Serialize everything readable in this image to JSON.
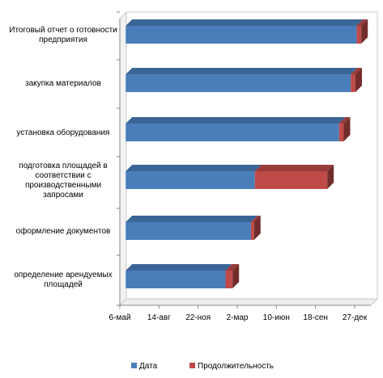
{
  "chart_data": {
    "type": "bar",
    "orientation": "horizontal",
    "stacked": true,
    "style": "3d",
    "categories": [
      "Итоговый отчет о готовности предприятия",
      "закупка материалов",
      "установка оборудования",
      "подготовка площадей в соответствии с производственными запросами",
      "оформление документов",
      "определение арендуемых площадей"
    ],
    "category_lines": [
      [
        "Итоговый отчет о готовности",
        "предприятия"
      ],
      [
        "закупка материалов"
      ],
      [
        "установка оборудования"
      ],
      [
        "подготовка площадей в",
        "соответствии с",
        "производственными",
        "запросами"
      ],
      [
        "оформление документов"
      ],
      [
        "определение арендуемых",
        "площадей"
      ]
    ],
    "x_ticks": [
      "6-май",
      "14-авг",
      "22-ноя",
      "2-мар",
      "10-июн",
      "18-сен",
      "27-дек"
    ],
    "x_tick_days": [
      0,
      100,
      200,
      300,
      400,
      500,
      600
    ],
    "xlim_days": [
      0,
      600
    ],
    "series": [
      {
        "name": "Дата",
        "color": "#4a7ebb",
        "values_days": [
          15,
          15,
          15,
          15,
          15,
          15
        ],
        "length_days": [
          590,
          575,
          545,
          330,
          320,
          255
        ]
      },
      {
        "name": "Продолжительность",
        "color": "#be4b48",
        "length_days": [
          12,
          12,
          12,
          185,
          8,
          18
        ]
      }
    ],
    "legend": {
      "position": "bottom",
      "items": [
        "Дата",
        "Продолжительность"
      ]
    },
    "grid": false,
    "bar_end_days_note": ""
  }
}
